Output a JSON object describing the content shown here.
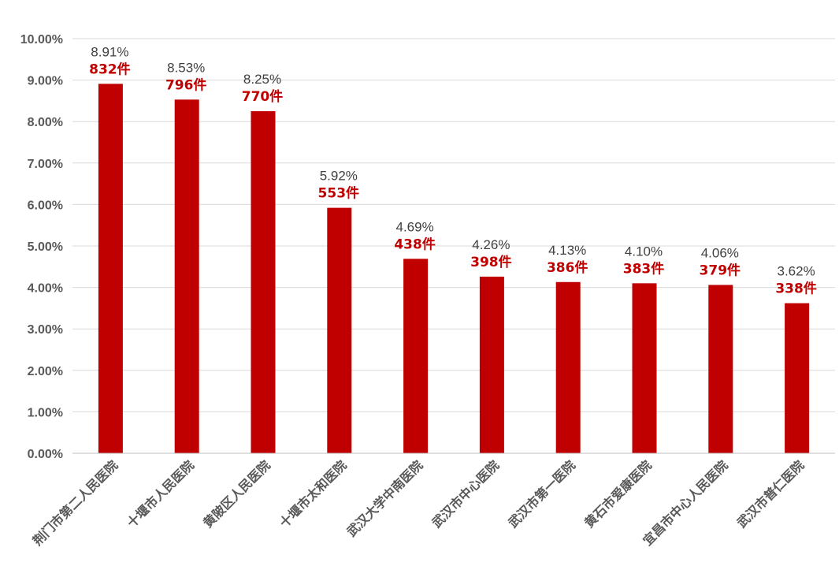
{
  "chart_data": {
    "type": "bar",
    "categories": [
      "荆门市第二人民医院",
      "十堰市人民医院",
      "黄陂区人民医院",
      "十堰市太和医院",
      "武汉大学中南医院",
      "武汉市中心医院",
      "武汉市第一医院",
      "黄石市爱康医院",
      "宜昌市中心人民医院",
      "武汉市普仁医院"
    ],
    "values": [
      8.91,
      8.53,
      8.25,
      5.92,
      4.69,
      4.26,
      4.13,
      4.1,
      4.06,
      3.62
    ],
    "percent_labels": [
      "8.91%",
      "8.53%",
      "8.25%",
      "5.92%",
      "4.69%",
      "4.26%",
      "4.13%",
      "4.10%",
      "4.06%",
      "3.62%"
    ],
    "count_labels": [
      "832件",
      "796件",
      "770件",
      "553件",
      "438件",
      "398件",
      "386件",
      "383件",
      "379件",
      "338件"
    ],
    "counts": [
      832,
      796,
      770,
      553,
      438,
      398,
      386,
      383,
      379,
      338
    ],
    "title": "",
    "xlabel": "",
    "ylabel": "",
    "ylim": [
      0,
      10
    ],
    "yticks": [
      "0.00%",
      "1.00%",
      "2.00%",
      "3.00%",
      "4.00%",
      "5.00%",
      "6.00%",
      "7.00%",
      "8.00%",
      "9.00%",
      "10.00%"
    ],
    "grid": true,
    "legend": "none",
    "bar_color": "#c00000",
    "percent_label_color": "#404040",
    "count_label_color": "#c00000"
  }
}
